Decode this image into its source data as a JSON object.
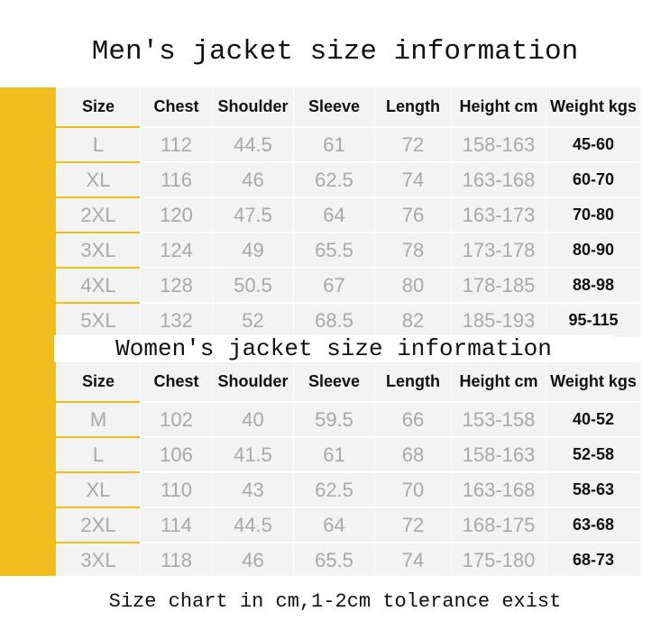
{
  "men": {
    "title": "Men's jacket size information",
    "headers": [
      "Size",
      "Chest",
      "Shoulder",
      "Sleeve",
      "Length",
      "Height cm",
      "Weight kgs"
    ],
    "rows": [
      [
        "L",
        "112",
        "44.5",
        "61",
        "72",
        "158-163",
        "45-60"
      ],
      [
        "XL",
        "116",
        "46",
        "62.5",
        "74",
        "163-168",
        "60-70"
      ],
      [
        "2XL",
        "120",
        "47.5",
        "64",
        "76",
        "163-173",
        "70-80"
      ],
      [
        "3XL",
        "124",
        "49",
        "65.5",
        "78",
        "173-178",
        "80-90"
      ],
      [
        "4XL",
        "128",
        "50.5",
        "67",
        "80",
        "178-185",
        "88-98"
      ],
      [
        "5XL",
        "132",
        "52",
        "68.5",
        "82",
        "185-193",
        "95-115"
      ]
    ]
  },
  "women": {
    "title": "Women's jacket size information",
    "headers": [
      "Size",
      "Chest",
      "Shoulder",
      "Sleeve",
      "Length",
      "Height cm",
      "Weight kgs"
    ],
    "rows": [
      [
        "M",
        "102",
        "40",
        "59.5",
        "66",
        "153-158",
        "40-52"
      ],
      [
        "L",
        "106",
        "41.5",
        "61",
        "68",
        "158-163",
        "52-58"
      ],
      [
        "XL",
        "110",
        "43",
        "62.5",
        "70",
        "163-168",
        "58-63"
      ],
      [
        "2XL",
        "114",
        "44.5",
        "64",
        "72",
        "168-175",
        "63-68"
      ],
      [
        "3XL",
        "118",
        "46",
        "65.5",
        "74",
        "175-180",
        "68-73"
      ]
    ]
  },
  "caption": "Size chart in cm,1-2cm tolerance exist",
  "colors": {
    "accent": "#f0bd1e",
    "table_bg": "#f3f3f3",
    "value_text": "#a9a9a9"
  }
}
